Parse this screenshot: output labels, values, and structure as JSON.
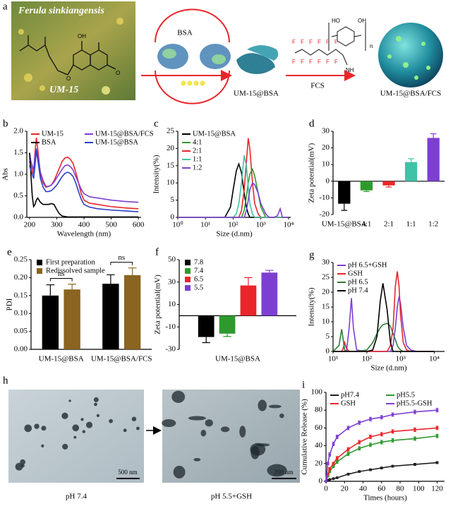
{
  "scheme": {
    "panel": "a",
    "plant": "Ferula sinkiangensis",
    "compound": "UM-15",
    "hydroxyl": "OH",
    "ring_oxygens": [
      "O",
      "O"
    ],
    "protein": "BSA",
    "complex": "UM-15@BSA",
    "polymer": "FCS",
    "polymer_groups": [
      "HO",
      "OH",
      "NH",
      "n"
    ],
    "fluorines": [
      "F",
      "F",
      "F",
      "F",
      "F",
      "F",
      "F",
      "F",
      "F",
      "F",
      "F",
      "F"
    ],
    "product": "UM-15@BSA/FCS"
  },
  "chart_data": [
    {
      "panel": "b",
      "type": "line",
      "ylabel": "Abs",
      "xlabel": "Wavelength (nm)",
      "xlim": [
        190,
        610
      ],
      "xticks": [
        200,
        300,
        400,
        500,
        600
      ],
      "ylim": [
        0,
        2
      ],
      "yticks": [
        {
          "value": 0,
          "label": "0.0"
        },
        0.5,
        {
          "value": 1,
          "label": "1.0"
        },
        1.5,
        {
          "value": 2,
          "label": "2.0"
        }
      ],
      "legend": "upper left",
      "legend_columns": 2,
      "x": [
        200,
        205,
        210,
        215,
        220,
        225,
        230,
        240,
        250,
        260,
        270,
        280,
        290,
        300,
        310,
        320,
        330,
        340,
        350,
        360,
        370,
        380,
        390,
        400,
        420,
        450,
        500,
        550,
        600
      ],
      "series": [
        {
          "name": "UM-15",
          "color": "#e8262b",
          "values": [
            1.3,
            1.2,
            1.1,
            1.0,
            1.5,
            1.85,
            1.6,
            1.0,
            0.8,
            0.7,
            0.72,
            0.75,
            0.85,
            1.0,
            1.15,
            1.3,
            1.38,
            1.4,
            1.35,
            1.25,
            1.05,
            0.8,
            0.55,
            0.4,
            0.33,
            0.3,
            0.25,
            0.22,
            0.2
          ]
        },
        {
          "name": "UM-15@BSA/FCS",
          "color": "#7d3fd1",
          "values": [
            1.5,
            1.3,
            1.2,
            1.1,
            1.45,
            1.6,
            1.45,
            1.05,
            0.85,
            0.72,
            0.72,
            0.75,
            0.82,
            0.92,
            1.02,
            1.12,
            1.2,
            1.22,
            1.18,
            1.1,
            0.95,
            0.8,
            0.65,
            0.55,
            0.48,
            0.45,
            0.4,
            0.37,
            0.35
          ]
        },
        {
          "name": "BSA",
          "color": "#000000",
          "values": [
            1.5,
            1.0,
            0.5,
            0.25,
            0.3,
            0.4,
            0.45,
            0.35,
            0.3,
            0.3,
            0.3,
            0.32,
            0.3,
            0.18,
            0.08,
            0.03,
            0.02,
            0.01,
            0.01,
            0.01,
            0.01,
            0.01,
            0.01,
            0.01,
            0.01,
            0.01,
            0.01,
            0.01,
            0.01
          ]
        },
        {
          "name": "UM-15@BSA",
          "color": "#2c3fc4",
          "values": [
            1.2,
            1.1,
            1.0,
            0.9,
            1.2,
            1.55,
            1.35,
            0.9,
            0.7,
            0.6,
            0.6,
            0.62,
            0.68,
            0.75,
            0.85,
            0.95,
            1.02,
            1.05,
            1.02,
            0.95,
            0.8,
            0.6,
            0.42,
            0.3,
            0.24,
            0.2,
            0.17,
            0.15,
            0.13
          ]
        }
      ]
    },
    {
      "panel": "c",
      "type": "line",
      "ylabel": "Intensity(%)",
      "xlabel": "Size (d.nm)",
      "xscale": "log",
      "xlim": [
        1,
        12000
      ],
      "xticks": [
        {
          "value": 1,
          "label": "10⁰"
        },
        {
          "value": 10,
          "label": "10¹"
        },
        {
          "value": 100,
          "label": "10²"
        },
        {
          "value": 1000,
          "label": "10³"
        },
        {
          "value": 10000,
          "label": "10⁴"
        }
      ],
      "ylim": [
        0,
        25
      ],
      "yticks": [
        0,
        5,
        10,
        15,
        20,
        25
      ],
      "legend": "upper left",
      "x": [
        1,
        10,
        50,
        80,
        100,
        130,
        160,
        200,
        250,
        300,
        350,
        400,
        500,
        600,
        800,
        1000,
        1500,
        2000,
        3000,
        4000,
        5000,
        6000,
        8000,
        10000
      ],
      "series": [
        {
          "name": "UM-15@BSA",
          "color": "#000000",
          "values": [
            0,
            0,
            0,
            3,
            8,
            13.5,
            15.5,
            13,
            7,
            3,
            1,
            0,
            0,
            0,
            0,
            0,
            0,
            0,
            0,
            0,
            0,
            0,
            0,
            0
          ]
        },
        {
          "name": "4:1",
          "color": "#2e9a2e",
          "values": [
            0,
            0,
            0,
            0,
            0,
            0,
            0,
            0,
            2,
            6,
            10,
            12.5,
            14,
            12,
            7,
            3,
            0,
            0,
            0,
            0,
            0,
            0,
            0,
            0
          ]
        },
        {
          "name": "2:1",
          "color": "#e8262b",
          "values": [
            0,
            0,
            0,
            0,
            0,
            0,
            0,
            2,
            8,
            16,
            23,
            20,
            10,
            4,
            1,
            0,
            0,
            0,
            0,
            0,
            0,
            0,
            0,
            0
          ]
        },
        {
          "name": "1:1",
          "color": "#3fc2a6",
          "values": [
            0,
            0,
            0,
            0,
            0,
            1,
            4,
            10,
            18,
            15,
            9,
            4,
            1,
            0,
            0,
            0,
            0,
            0,
            0,
            0,
            0,
            0,
            0,
            0
          ]
        },
        {
          "name": "1:2",
          "color": "#7d3fd1",
          "values": [
            0,
            0,
            0,
            0,
            0,
            0,
            0,
            0,
            0,
            2,
            5,
            8,
            10,
            9.5,
            7,
            4,
            1,
            0,
            0,
            0.5,
            2.5,
            0,
            0,
            0
          ]
        }
      ]
    },
    {
      "panel": "d",
      "type": "bar",
      "ylabel": "Zeta potential(mV)",
      "ylim": [
        -20,
        30
      ],
      "yticks": [
        -20,
        -10,
        0,
        10,
        20,
        30
      ],
      "categories": [
        "UM-15@BSA",
        "4:1",
        "2:1",
        "1:1",
        "1:2"
      ],
      "values": [
        -13.5,
        -5.5,
        -2.5,
        11.5,
        26
      ],
      "errors": [
        4,
        0.7,
        1,
        2,
        2.5
      ],
      "colors": [
        "#000000",
        "#2e9a2e",
        "#e8262b",
        "#3fc2a6",
        "#7d3fd1"
      ]
    },
    {
      "panel": "e",
      "type": "bar",
      "ylabel": "PDI",
      "ylim": [
        0,
        0.25
      ],
      "yticks": [
        {
          "value": 0,
          "label": "0.00"
        },
        0.05,
        {
          "value": 0.1,
          "label": "0.10"
        },
        0.15,
        {
          "value": 0.2,
          "label": "0.20"
        },
        0.25
      ],
      "legend": "upper left",
      "categories": [
        "UM-15@BSA",
        "UM-15@BSA/FCS"
      ],
      "annotations": [
        "ns",
        "ns"
      ],
      "series": [
        {
          "name": "First preparation",
          "color": "#000000",
          "values": [
            0.15,
            0.183
          ],
          "errors": [
            0.03,
            0.025
          ]
        },
        {
          "name": "Redissolved sample",
          "color": "#8a6420",
          "values": [
            0.167,
            0.207
          ],
          "errors": [
            0.015,
            0.02
          ]
        }
      ]
    },
    {
      "panel": "f",
      "type": "bar",
      "ylabel": "Zeta potential(mV)",
      "ylim": [
        -30,
        50
      ],
      "yticks": [
        -30,
        -10,
        10,
        30,
        50
      ],
      "legend": "upper left",
      "categories": [
        "UM-15@BSA"
      ],
      "series": [
        {
          "name": "7.8",
          "color": "#000000",
          "values": [
            -19
          ],
          "errors": [
            5
          ]
        },
        {
          "name": "7.4",
          "color": "#2e9a2e",
          "values": [
            -16
          ],
          "errors": [
            2.5
          ]
        },
        {
          "name": "6.5",
          "color": "#e8262b",
          "values": [
            27
          ],
          "errors": [
            7
          ]
        },
        {
          "name": "5.5",
          "color": "#7d3fd1",
          "values": [
            38.5
          ],
          "errors": [
            2
          ]
        }
      ]
    },
    {
      "panel": "g",
      "type": "line",
      "ylabel": "Intensity(%)",
      "xlabel": "Size (d.nm)",
      "xscale": "log",
      "xlim": [
        10,
        20000
      ],
      "xticks": [
        {
          "value": 10,
          "label": "10¹"
        },
        {
          "value": 100,
          "label": "10²"
        },
        {
          "value": 1000,
          "label": "10³"
        },
        {
          "value": 10000,
          "label": "10⁴"
        }
      ],
      "ylim": [
        0,
        30
      ],
      "yticks": [
        0,
        5,
        10,
        15,
        20,
        25,
        30
      ],
      "legend": "upper left",
      "x": [
        10,
        15,
        18,
        20,
        22,
        25,
        30,
        35,
        40,
        50,
        100,
        150,
        200,
        250,
        300,
        400,
        500,
        600,
        700,
        800,
        900,
        1000,
        1200,
        1500,
        2000,
        3000,
        10000
      ],
      "series": [
        {
          "name": "pH 6.5+GSH",
          "color": "#7d3fd1",
          "values": [
            0,
            0,
            0,
            0,
            0,
            0,
            8,
            18,
            8,
            0.5,
            0,
            0,
            0,
            0,
            0,
            0,
            0,
            2,
            8,
            15,
            18.5,
            16,
            8,
            2,
            0.5,
            0,
            0
          ]
        },
        {
          "name": "GSH",
          "color": "#e8262b",
          "values": [
            0,
            0,
            0,
            1,
            3,
            1,
            0,
            0,
            0,
            0,
            0,
            0,
            0,
            0,
            0,
            0,
            2,
            8,
            22,
            27,
            22,
            12,
            3,
            0.5,
            0,
            0,
            0
          ]
        },
        {
          "name": "pH 6.5",
          "color": "#2e7d3a",
          "values": [
            0,
            2,
            7.5,
            4,
            0.5,
            0,
            0,
            0,
            0,
            0,
            0.5,
            3,
            6,
            8,
            9,
            9.5,
            8.5,
            6,
            4,
            2,
            1,
            0.5,
            0,
            0,
            0,
            0,
            0
          ]
        },
        {
          "name": "pH 7.4",
          "color": "#000000",
          "values": [
            0,
            0,
            0,
            0,
            0,
            0,
            0,
            0,
            0,
            0,
            0,
            0.5,
            5,
            17,
            23,
            14,
            3,
            0,
            0,
            0,
            0,
            0,
            0,
            0,
            0,
            0,
            0
          ]
        }
      ]
    },
    {
      "panel": "i",
      "type": "line",
      "ylabel": "Cumulative Release (%)",
      "xlabel": "Times (hours)",
      "xlim": [
        0,
        128
      ],
      "xticks": [
        0,
        20,
        40,
        60,
        80,
        100,
        120
      ],
      "ylim": [
        0,
        100
      ],
      "yticks": [
        0,
        20,
        40,
        60,
        80,
        100
      ],
      "legend": "upper left",
      "legend_columns": 2,
      "markers": true,
      "x": [
        0,
        2,
        4,
        8,
        12,
        24,
        36,
        48,
        60,
        72,
        96,
        120
      ],
      "series": [
        {
          "name": "pH7.4",
          "color": "#222222",
          "values": [
            0,
            1,
            2,
            3,
            4,
            8,
            11,
            13,
            15,
            17,
            19,
            21
          ],
          "errors": [
            0.5,
            0.5,
            0.5,
            0.8,
            0.8,
            1,
            1,
            1,
            1,
            1,
            1.2,
            1.2
          ]
        },
        {
          "name": "pH5.5",
          "color": "#2e9a2e",
          "values": [
            0,
            6,
            11,
            17,
            22,
            31,
            37,
            41,
            44,
            46,
            48,
            51
          ],
          "errors": [
            0.5,
            1,
            1.5,
            1.5,
            2,
            2,
            2,
            2,
            2,
            2,
            2,
            2
          ]
        },
        {
          "name": "GSH",
          "color": "#e8262b",
          "values": [
            0,
            8,
            14,
            20,
            26,
            36,
            44,
            50,
            53,
            56,
            58,
            60
          ],
          "errors": [
            0.5,
            1,
            1.5,
            1.5,
            2,
            2,
            2,
            2,
            2,
            2,
            2,
            2
          ]
        },
        {
          "name": "pH5.5-GSH",
          "color": "#7d3fd1",
          "values": [
            0,
            20,
            30,
            42,
            50,
            60,
            66,
            70,
            72,
            75,
            78,
            80
          ],
          "errors": [
            0.5,
            1.5,
            2,
            2,
            2,
            2,
            2,
            2,
            2,
            2,
            2,
            2
          ]
        }
      ]
    }
  ],
  "micrographs": {
    "panel": "h",
    "images": [
      {
        "caption": "pH 7.4",
        "scale": "500 nm"
      },
      {
        "caption": "pH 5.5+GSH",
        "scale": "200 nm"
      }
    ]
  }
}
